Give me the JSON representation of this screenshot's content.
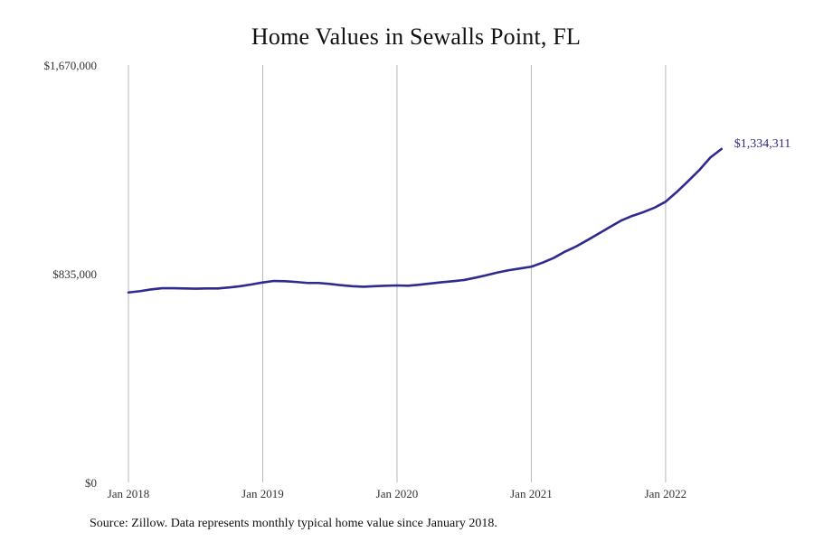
{
  "chart_data": {
    "type": "line",
    "title": "Home Values in Sewalls Point, FL",
    "xlabel": "",
    "ylabel": "",
    "ylim": [
      0,
      1670000
    ],
    "y_ticks": [
      {
        "value": 0,
        "label": "$0"
      },
      {
        "value": 835000,
        "label": "$835,000"
      },
      {
        "value": 1670000,
        "label": "$1,670,000"
      }
    ],
    "x_ticks": [
      {
        "date": "2018-01",
        "label": "Jan 2018"
      },
      {
        "date": "2019-01",
        "label": "Jan 2019"
      },
      {
        "date": "2020-01",
        "label": "Jan 2020"
      },
      {
        "date": "2021-01",
        "label": "Jan 2021"
      },
      {
        "date": "2022-01",
        "label": "Jan 2022"
      }
    ],
    "xlim": [
      "2018-01",
      "2022-12"
    ],
    "grid": {
      "vertical": true,
      "horizontal": false
    },
    "line_color": "#2e2a8f",
    "series": [
      {
        "x": [
          "2018-01",
          "2018-02",
          "2018-03",
          "2018-04",
          "2018-05",
          "2018-06",
          "2018-07",
          "2018-08",
          "2018-09",
          "2018-10",
          "2018-11",
          "2018-12",
          "2019-01",
          "2019-02",
          "2019-03",
          "2019-04",
          "2019-05",
          "2019-06",
          "2019-07",
          "2019-08",
          "2019-09",
          "2019-10",
          "2019-11",
          "2019-12",
          "2020-01",
          "2020-02",
          "2020-03",
          "2020-04",
          "2020-05",
          "2020-06",
          "2020-07",
          "2020-08",
          "2020-09",
          "2020-10",
          "2020-11",
          "2020-12",
          "2021-01",
          "2021-02",
          "2021-03",
          "2021-04",
          "2021-05",
          "2021-06",
          "2021-07",
          "2021-08",
          "2021-09",
          "2021-10",
          "2021-11",
          "2021-12",
          "2022-01",
          "2022-02",
          "2022-03",
          "2022-04",
          "2022-05",
          "2022-06"
        ],
        "values": [
          760000,
          765000,
          772000,
          777000,
          777000,
          776000,
          775000,
          776000,
          776000,
          780000,
          785000,
          792000,
          800000,
          806000,
          805000,
          802000,
          798000,
          798000,
          794000,
          789000,
          785000,
          783000,
          785000,
          787000,
          788000,
          787000,
          791000,
          796000,
          801000,
          805000,
          810000,
          819000,
          829000,
          840000,
          849000,
          856000,
          863000,
          879000,
          898000,
          923000,
          944000,
          969000,
          995000,
          1021000,
          1047000,
          1066000,
          1081000,
          1099000,
          1123000,
          1162000,
          1205000,
          1249000,
          1300000,
          1334311
        ]
      }
    ],
    "end_label": "$1,334,311"
  },
  "source_note": "Source: Zillow. Data represents monthly typical home value since January 2018."
}
